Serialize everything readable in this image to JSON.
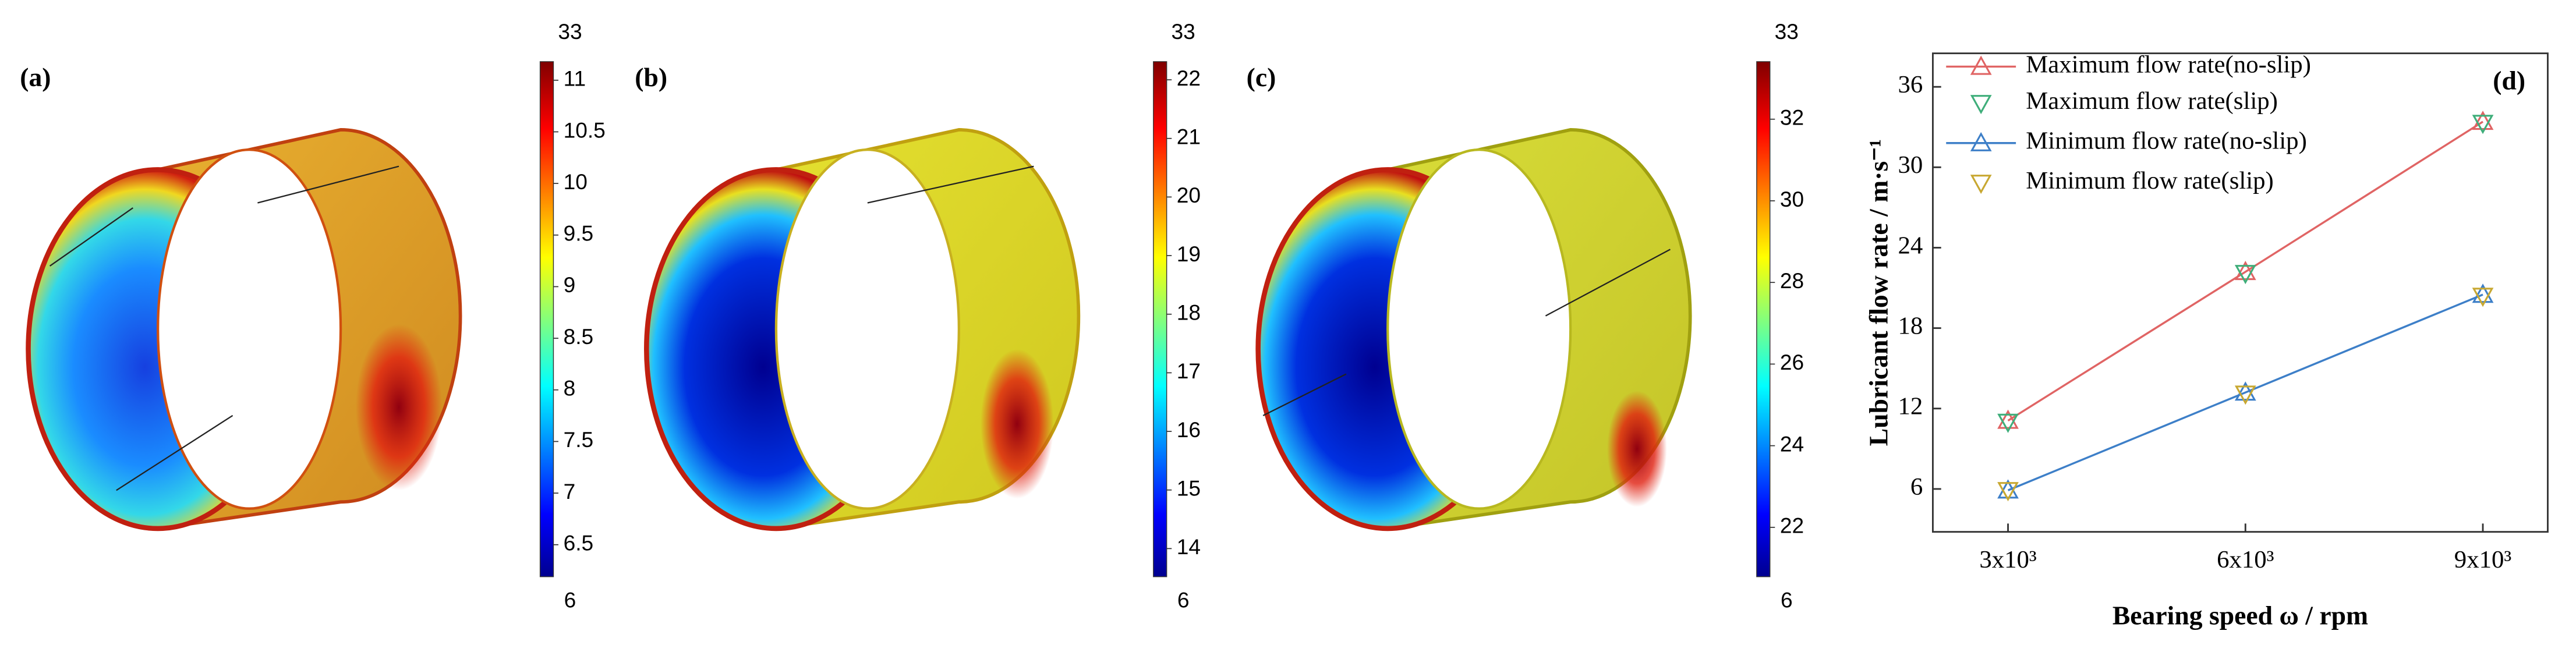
{
  "chart_data": [
    {
      "type": "colormap",
      "panel_label": "(a)",
      "max_label": 33,
      "min_label": 6,
      "clim": [
        6.19,
        11.18
      ],
      "ticks": [
        6.5,
        7,
        7.5,
        8,
        8.5,
        9,
        9.5,
        10,
        10.5,
        11
      ]
    },
    {
      "type": "colormap",
      "panel_label": "(b)",
      "max_label": 33,
      "min_label": 6,
      "clim": [
        13.52,
        22.31
      ],
      "ticks": [
        14,
        15,
        16,
        17,
        18,
        19,
        20,
        21,
        22
      ]
    },
    {
      "type": "colormap",
      "panel_label": "(c)",
      "max_label": 33,
      "min_label": 6,
      "clim": [
        20.79,
        33.41
      ],
      "ticks": [
        22,
        24,
        26,
        28,
        30,
        32
      ]
    },
    {
      "type": "line",
      "panel_label": "(d)",
      "xlabel": "Bearing speed ω / rpm",
      "ylabel": "Lubricant flow rate / m·s⁻¹",
      "x": [
        3000,
        6000,
        9000
      ],
      "xlim": [
        2050,
        9820
      ],
      "xticks": [
        {
          "value": 3000,
          "label": "3x10³"
        },
        {
          "value": 6000,
          "label": "6x10³"
        },
        {
          "value": 9000,
          "label": "9x10³"
        }
      ],
      "ylim": [
        2.8,
        38.5
      ],
      "yticks": [
        6,
        12,
        18,
        24,
        30,
        36
      ],
      "legend": "upper left",
      "series": [
        {
          "name": "Maximum flow rate(no-slip)",
          "color": "#e06464",
          "marker": "triangle-up",
          "line": true,
          "values": [
            11.1,
            22.2,
            33.4
          ]
        },
        {
          "name": "Maximum flow rate(slip)",
          "color": "#3fae7a",
          "marker": "triangle-down",
          "line": false,
          "values": [
            11.0,
            22.1,
            33.3
          ]
        },
        {
          "name": "Minimum flow rate(no-slip)",
          "color": "#3d7fc8",
          "marker": "triangle-up",
          "line": true,
          "values": [
            5.9,
            13.2,
            20.5
          ]
        },
        {
          "name": "Minimum flow rate(slip)",
          "color": "#c8a832",
          "marker": "triangle-down",
          "line": false,
          "values": [
            5.9,
            13.1,
            20.4
          ]
        }
      ]
    }
  ]
}
